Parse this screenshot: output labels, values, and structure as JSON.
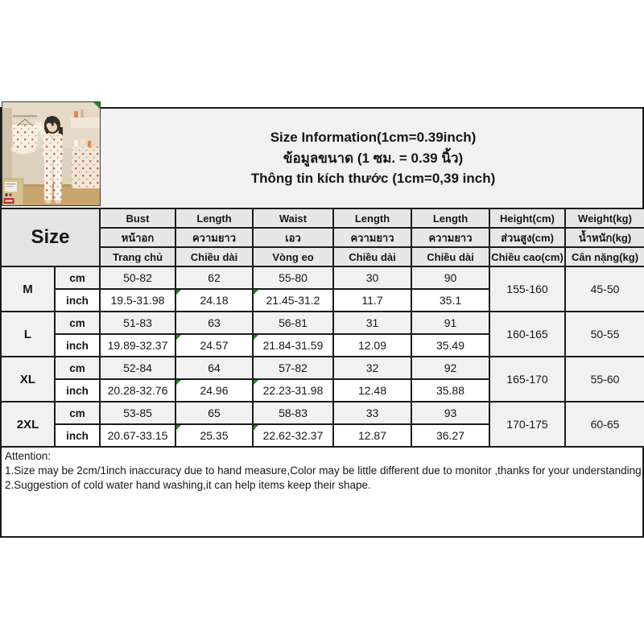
{
  "title": {
    "line_en": "Size Information(1cm=0.39inch)",
    "line_th": "ข้อมูลขนาด (1 ซม. = 0.39 นิ้ว)",
    "line_vi": "Thông tin kích thước (1cm=0,39 inch)"
  },
  "photo": {
    "description": "model mirror selfie wearing cream floral-print pajama set, matching set hanging beside"
  },
  "table": {
    "size_header": "Size",
    "columns": [
      {
        "en": "Bust",
        "th": "หน้าอก",
        "vi": "Trang chủ"
      },
      {
        "en": "Length",
        "th": "ความยาว",
        "vi": "Chiều dài"
      },
      {
        "en": "Waist",
        "th": "เอว",
        "vi": "Vòng eo"
      },
      {
        "en": "Length",
        "th": "ความยาว",
        "vi": "Chiều dài"
      },
      {
        "en": "Length",
        "th": "ความยาว",
        "vi": "Chiều dài"
      },
      {
        "en": "Height(cm)",
        "th": "ส่วนสูง(cm)",
        "vi": "Chiều cao(cm)"
      },
      {
        "en": "Weight(kg)",
        "th": "น้ำหนัก(kg)",
        "vi": "Cân nặng(kg)"
      }
    ],
    "unit_labels": [
      "cm",
      "inch"
    ],
    "rows": [
      {
        "size": "M",
        "cm": [
          "50-82",
          "62",
          "55-80",
          "30",
          "90"
        ],
        "inch": [
          "19.5-31.98",
          "24.18",
          "21.45-31.2",
          "11.7",
          "35.1"
        ],
        "height": "155-160",
        "weight": "45-50"
      },
      {
        "size": "L",
        "cm": [
          "51-83",
          "63",
          "56-81",
          "31",
          "91"
        ],
        "inch": [
          "19.89-32.37",
          "24.57",
          "21.84-31.59",
          "12.09",
          "35.49"
        ],
        "height": "160-165",
        "weight": "50-55"
      },
      {
        "size": "XL",
        "cm": [
          "52-84",
          "64",
          "57-82",
          "32",
          "92"
        ],
        "inch": [
          "20.28-32.76",
          "24.96",
          "22.23-31.98",
          "12.48",
          "35.88"
        ],
        "height": "165-170",
        "weight": "55-60"
      },
      {
        "size": "2XL",
        "cm": [
          "53-85",
          "65",
          "58-83",
          "33",
          "93"
        ],
        "inch": [
          "20.67-33.15",
          "25.35",
          "22.62-32.37",
          "12.87",
          "36.27"
        ],
        "height": "170-175",
        "weight": "60-65"
      }
    ]
  },
  "attention": {
    "heading": "Attention:",
    "lines": [
      "1.Size may be 2cm/1inch inaccuracy due to hand measure,Color may be little different due to monitor ,thanks for your understanding.",
      "2.Suggestion of cold water hand washing,it can help items keep their shape."
    ]
  },
  "colors": {
    "border": "#1b1b1b",
    "header_fill": "#e7e7e7",
    "title_band_fill": "#f1f1f1",
    "cm_row_fill": "#f1f1f1",
    "comment_marker_green": "#1e8a1e"
  }
}
